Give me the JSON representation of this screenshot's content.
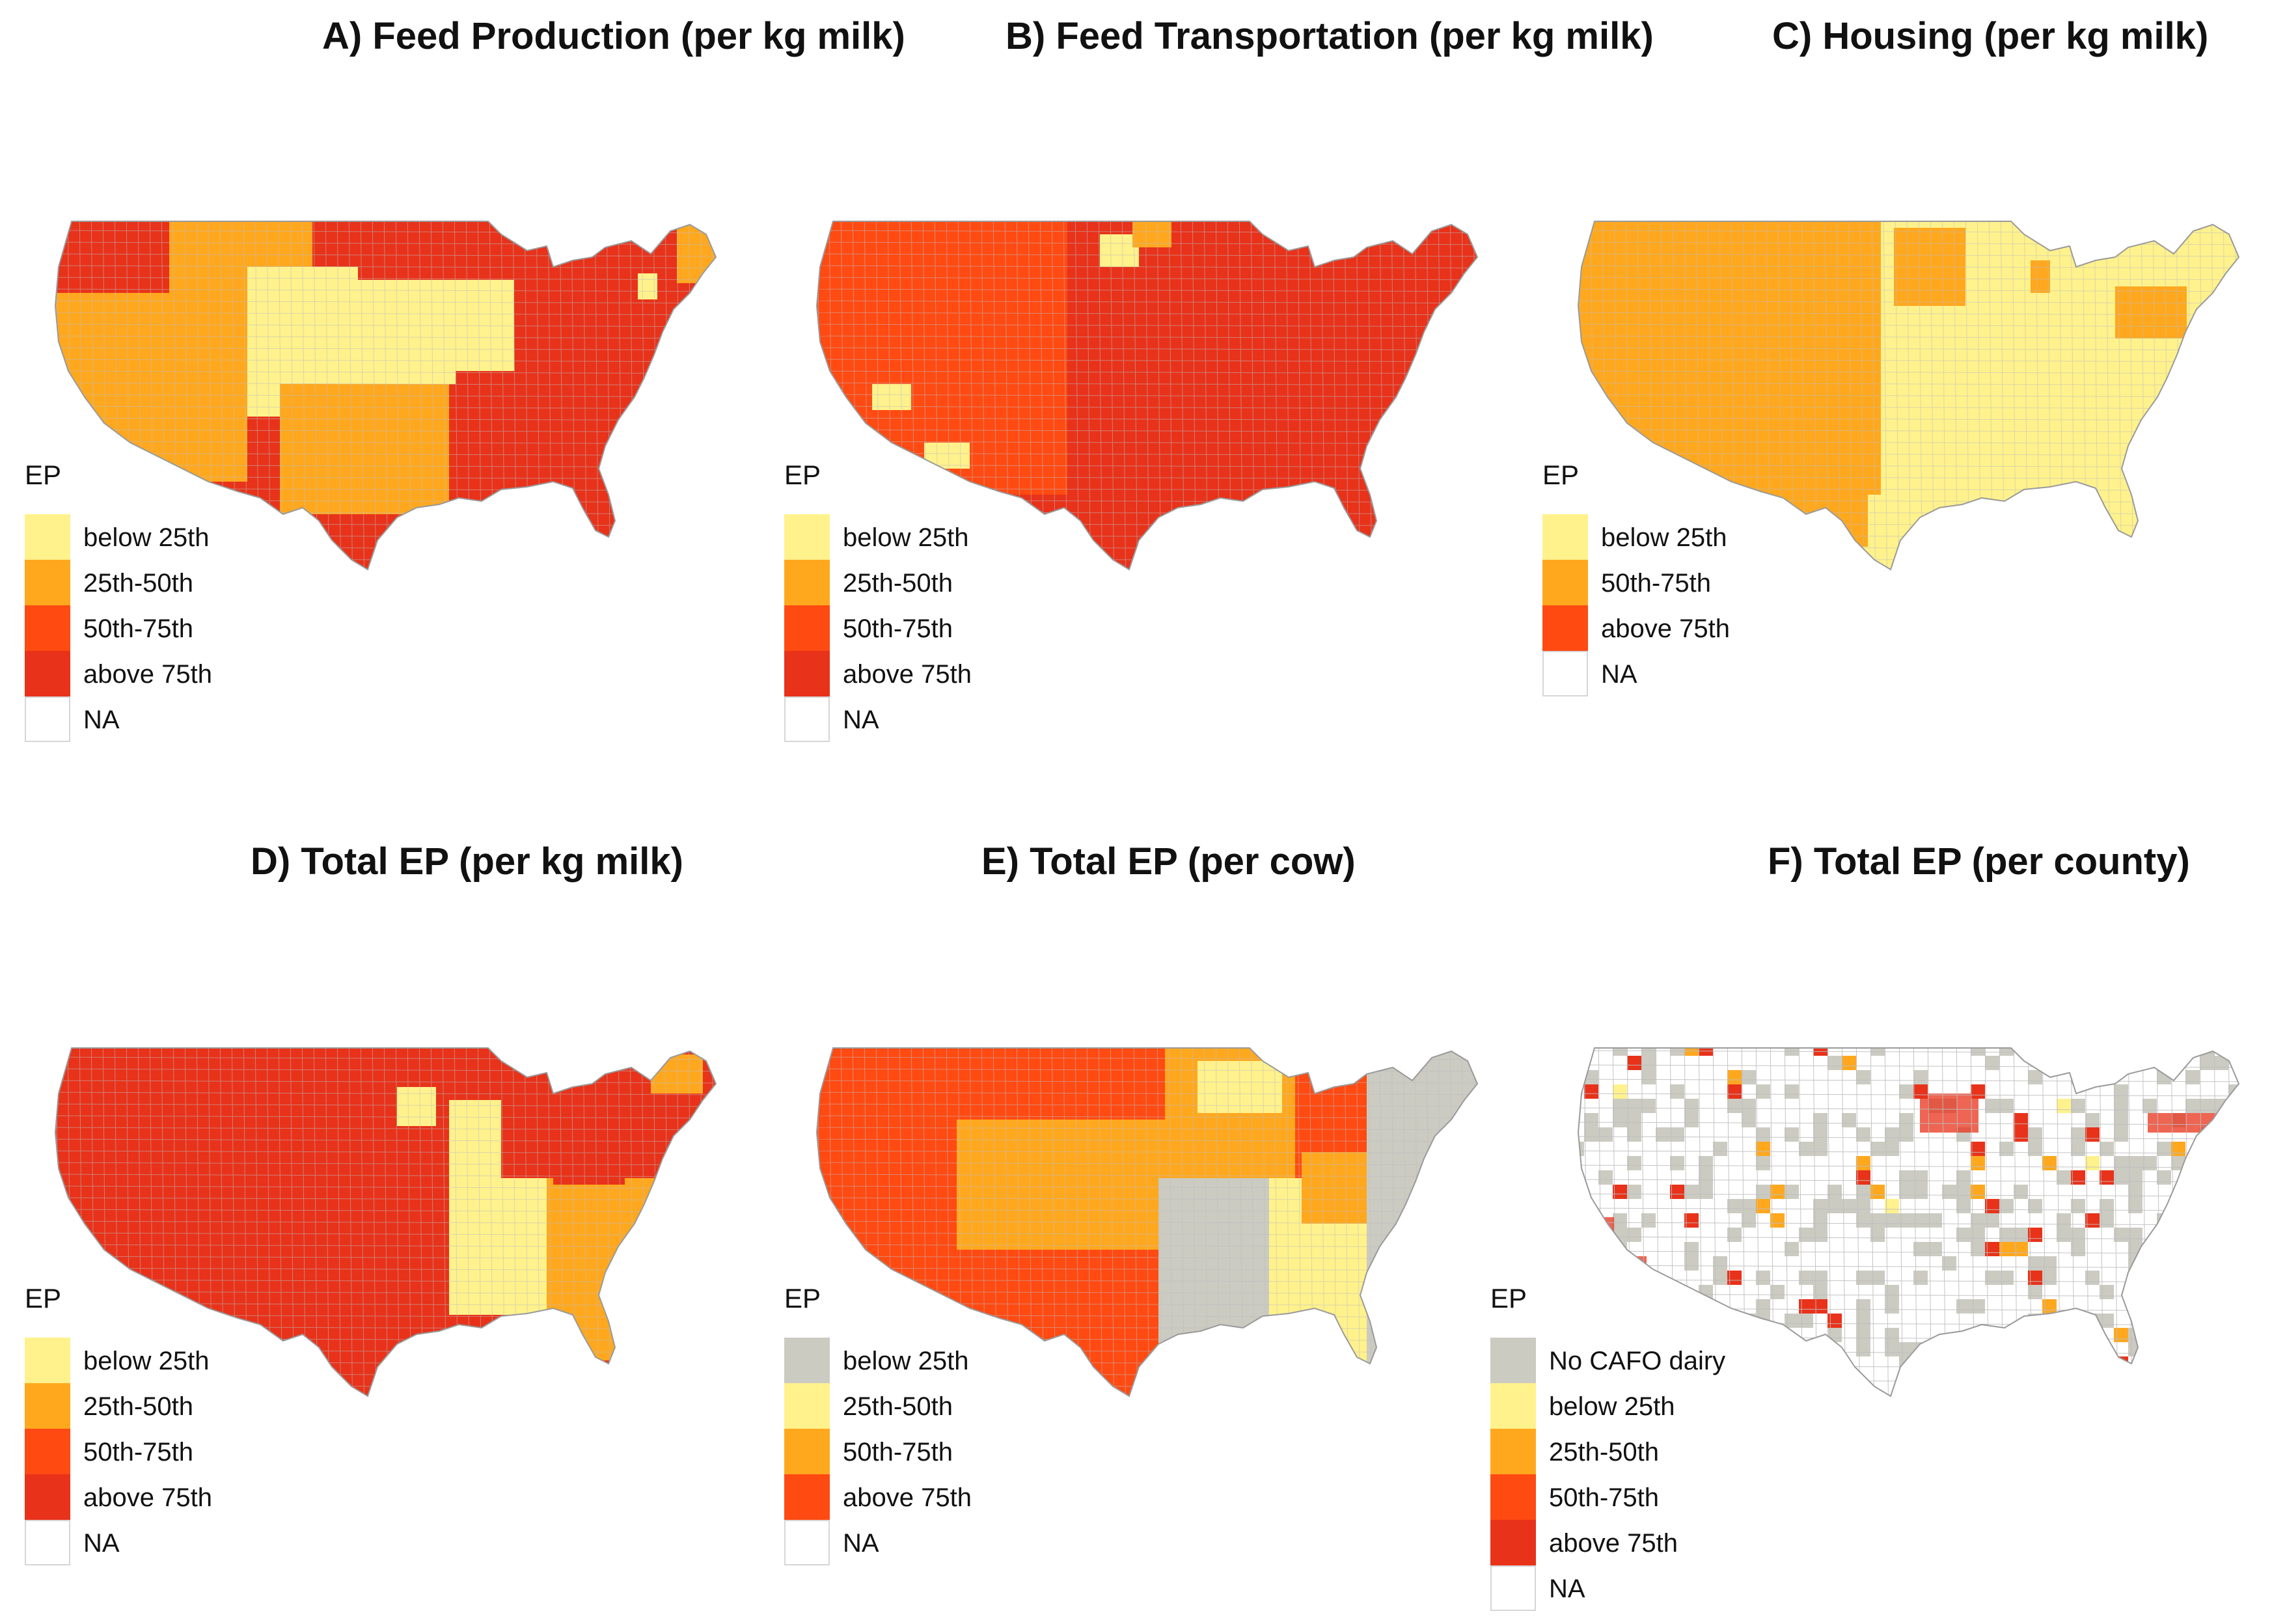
{
  "colors": {
    "q1": "#FFF28C",
    "q2": "#FFA81E",
    "q3": "#FF4A12",
    "q4": "#E8321A",
    "na": "#FFFFFF",
    "gray": "#CBCBC2",
    "border": "#BEBEBE"
  },
  "legend_title": "EP",
  "panels": [
    {
      "id": "A",
      "title": "A) Feed Production (per kg milk)",
      "legend": [
        {
          "label": "below 25th",
          "color": "#FFF28C"
        },
        {
          "label": "25th-50th",
          "color": "#FFA81E"
        },
        {
          "label": "50th-75th",
          "color": "#FF4A12"
        },
        {
          "label": "above 75th",
          "color": "#E8321A"
        },
        {
          "label": "NA",
          "color": "#FFFFFF"
        }
      ]
    },
    {
      "id": "B",
      "title": "B) Feed Transportation (per kg milk)",
      "legend": [
        {
          "label": "below 25th",
          "color": "#FFF28C"
        },
        {
          "label": "25th-50th",
          "color": "#FFA81E"
        },
        {
          "label": "50th-75th",
          "color": "#FF4A12"
        },
        {
          "label": "above 75th",
          "color": "#E8321A"
        },
        {
          "label": "NA",
          "color": "#FFFFFF"
        }
      ]
    },
    {
      "id": "C",
      "title": "C) Housing (per kg milk)",
      "legend": [
        {
          "label": "below 25th",
          "color": "#FFF28C"
        },
        {
          "label": "50th-75th",
          "color": "#FFA81E"
        },
        {
          "label": "above 75th",
          "color": "#FF4A12"
        },
        {
          "label": "NA",
          "color": "#FFFFFF"
        }
      ]
    },
    {
      "id": "D",
      "title": "D) Total EP (per kg milk)",
      "legend": [
        {
          "label": "below 25th",
          "color": "#FFF28C"
        },
        {
          "label": "25th-50th",
          "color": "#FFA81E"
        },
        {
          "label": "50th-75th",
          "color": "#FF4A12"
        },
        {
          "label": "above 75th",
          "color": "#E8321A"
        },
        {
          "label": "NA",
          "color": "#FFFFFF"
        }
      ]
    },
    {
      "id": "E",
      "title": "E) Total EP (per cow)",
      "legend": [
        {
          "label": "below 25th",
          "color": "#CBCBC2"
        },
        {
          "label": "25th-50th",
          "color": "#FFF28C"
        },
        {
          "label": "50th-75th",
          "color": "#FFA81E"
        },
        {
          "label": "above 75th",
          "color": "#FF4A12"
        },
        {
          "label": "NA",
          "color": "#FFFFFF"
        }
      ]
    },
    {
      "id": "F",
      "title": "F) Total EP (per county)",
      "legend": [
        {
          "label": "No CAFO dairy",
          "color": "#CBCBC2"
        },
        {
          "label": "below 25th",
          "color": "#FFF28C"
        },
        {
          "label": "25th-50th",
          "color": "#FFA81E"
        },
        {
          "label": "50th-75th",
          "color": "#FF4A12"
        },
        {
          "label": "above 75th",
          "color": "#E8321A"
        },
        {
          "label": "NA",
          "color": "#FFFFFF"
        }
      ]
    }
  ]
}
